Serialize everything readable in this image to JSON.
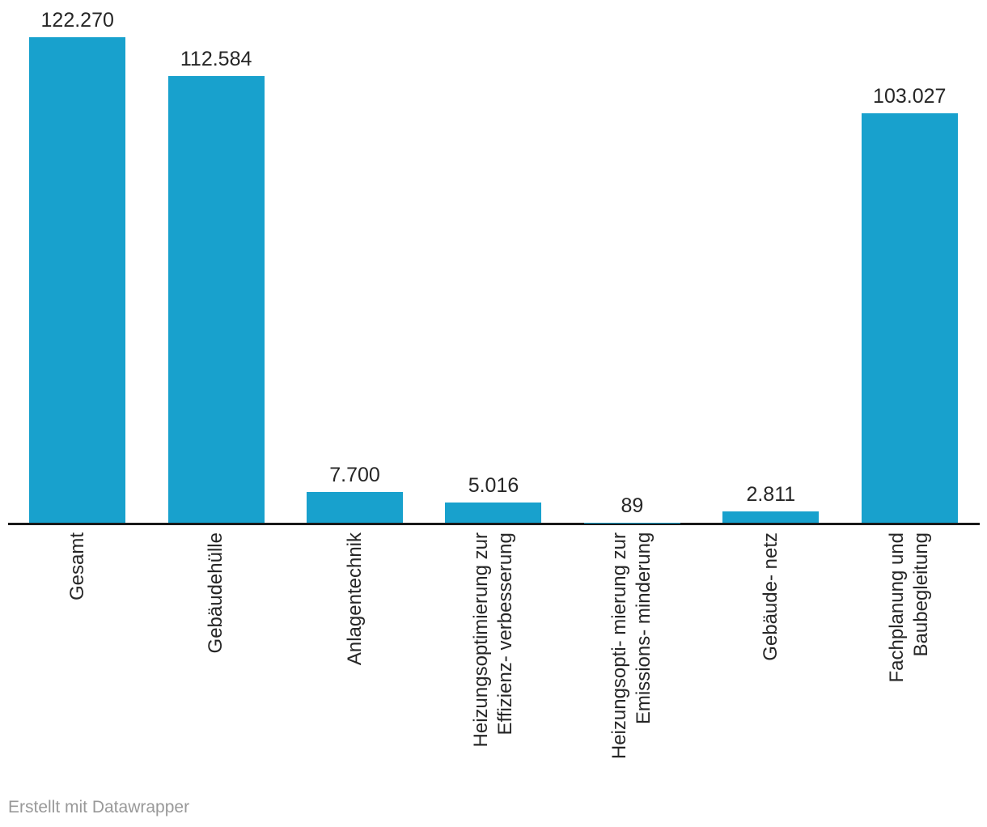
{
  "chart_data": {
    "type": "bar",
    "categories": [
      "Gesamt",
      "Gebäudehülle",
      "Anlagentechnik",
      "Heizungsoptimierung zur\nEffizienz- verbesserung",
      "Heizungsopti- mierung zur\nEmissions- minderung",
      "Gebäude- netz",
      "Fachplanung und\nBaubegleitung"
    ],
    "values": [
      122270,
      112584,
      7700,
      5016,
      89,
      2811,
      103027
    ],
    "value_labels": [
      "122.270",
      "112.584",
      "7.700",
      "5.016",
      "89",
      "2.811",
      "103.027"
    ],
    "title": "",
    "xlabel": "",
    "ylabel": "",
    "ylim": [
      0,
      122270
    ],
    "grid": false,
    "legend": false,
    "bar_color": "#18a1cd",
    "axis_color": "#191919",
    "label_color": "#262626",
    "footer_color": "#999999"
  },
  "footer": {
    "attribution": "Erstellt mit Datawrapper"
  }
}
